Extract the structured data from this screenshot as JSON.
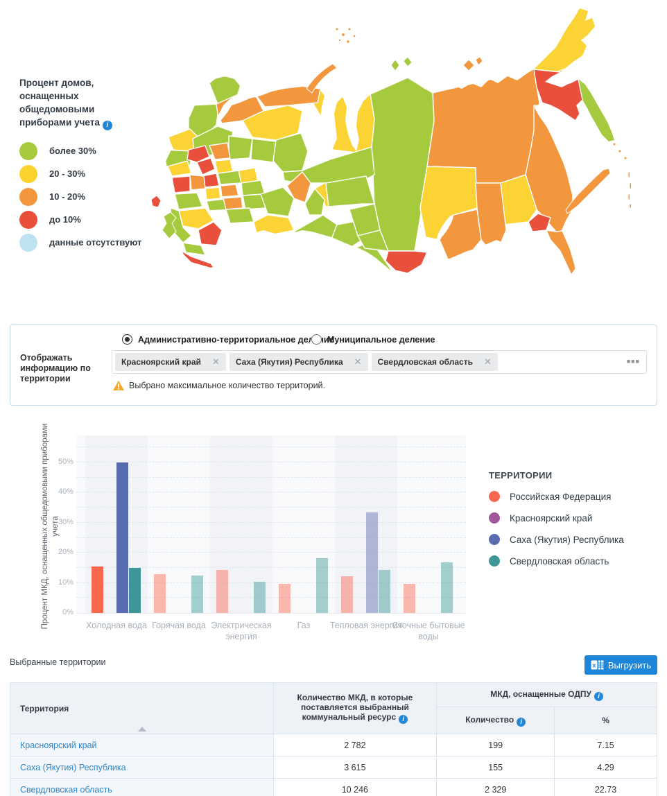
{
  "map_legend": {
    "title": "Процент домов, оснащенных общедомовыми приборами учета",
    "items": [
      {
        "label": "более 30%",
        "color": "#a5ca3e"
      },
      {
        "label": "20 - 30%",
        "color": "#fad32f"
      },
      {
        "label": "10 - 20%",
        "color": "#f2973d"
      },
      {
        "label": "до 10%",
        "color": "#e8503c"
      },
      {
        "label": "данные отсутствуют",
        "color": "#bfe2f1"
      }
    ]
  },
  "filters": {
    "radio_options": [
      {
        "label": "Административно-территориальное деление",
        "selected": true
      },
      {
        "label": "Муниципальное деление",
        "selected": false
      }
    ],
    "territory_label": "Отображать информацию по территории",
    "tags": [
      "Красноярский край",
      "Саха (Якутия) Республика",
      "Свердловская область"
    ],
    "more_button": "■■■",
    "warning": "Выбрано максимальное количество территорий."
  },
  "chart_data": {
    "type": "bar",
    "title": "",
    "ylabel": "Процент МКД, оснащенных общедомовыми приборами учета",
    "xlabel": "",
    "ylim": [
      0,
      59
    ],
    "grid": "dashed horizontal every 5%",
    "yticks": [
      0,
      10,
      20,
      30,
      40,
      50
    ],
    "categories": [
      "Холодная вода",
      "Горячая вода",
      "Электрическая энергия",
      "Газ",
      "Тепловая энергия",
      "Сточные бытовые воды"
    ],
    "highlighted_category": "Холодная вода",
    "series": [
      {
        "name": "Российская Федерация",
        "color": "#f8684f",
        "values": [
          15.4,
          12.9,
          14.2,
          9.6,
          12.2,
          9.6
        ]
      },
      {
        "name": "Красноярский край",
        "color": "#a3589b",
        "values": [
          null,
          null,
          null,
          null,
          null,
          null
        ]
      },
      {
        "name": "Саха (Якутия) Республика",
        "color": "#5a6cb0",
        "values": [
          50,
          null,
          null,
          null,
          33.4,
          null
        ]
      },
      {
        "name": "Свердловская область",
        "color": "#3e9696",
        "values": [
          14.9,
          12.4,
          10.4,
          18.3,
          14.4,
          16.8
        ]
      }
    ],
    "legend_title": "ТЕРРИТОРИИ",
    "legend_position": "right"
  },
  "table_section": {
    "caption": "Выбранные территории",
    "export_label": "Выгрузить",
    "columns": {
      "territory": "Территория",
      "mkd_supplied": "Количество МКД, в которые поставляется выбранный коммунальный ресурс",
      "mkd_odpu_group": "МКД, оснащенные ОДПУ",
      "count": "Количество",
      "percent": "%"
    },
    "rows": [
      {
        "territory": "Красноярский край",
        "mkd_supplied": "2 782",
        "count": "199",
        "percent": "7.15"
      },
      {
        "territory": "Саха (Якутия) Республика",
        "mkd_supplied": "3 615",
        "count": "155",
        "percent": "4.29"
      },
      {
        "territory": "Свердловская область",
        "mkd_supplied": "10 246",
        "count": "2 329",
        "percent": "22.73"
      }
    ]
  },
  "colors": {
    "accent_blue": "#1d86d8",
    "link": "#2e86c8",
    "warning_icon": "#f5a82d",
    "map_green": "#a5ca3e",
    "map_yellow": "#fbd335",
    "map_orange": "#f2973d",
    "map_red": "#e8503c"
  }
}
